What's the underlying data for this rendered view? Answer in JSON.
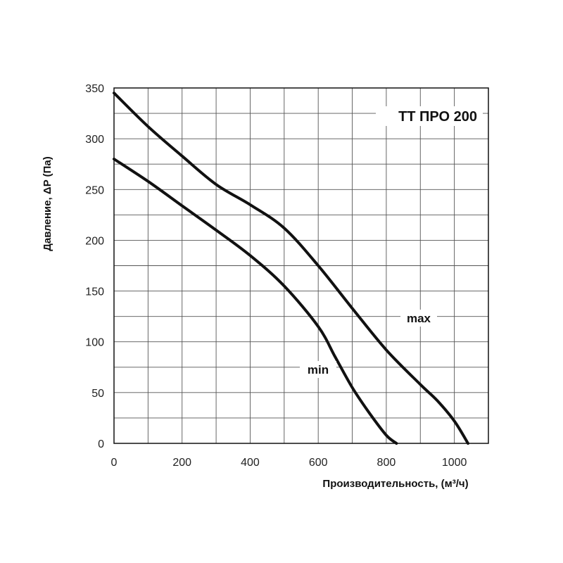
{
  "chart_data": {
    "type": "line",
    "title": "TT ПРО 200",
    "xlabel": "Производительность, (м³/ч)",
    "ylabel": "Давление, ΔP (Па)",
    "xlim": [
      0,
      1100
    ],
    "ylim": [
      0,
      350
    ],
    "xticks": [
      0,
      200,
      400,
      600,
      800,
      1000
    ],
    "yticks": [
      0,
      50,
      100,
      150,
      200,
      250,
      300,
      350
    ],
    "grid": true,
    "series": [
      {
        "name": "max",
        "x": [
          0,
          100,
          200,
          300,
          400,
          500,
          600,
          700,
          800,
          900,
          950,
          1000,
          1040
        ],
        "y": [
          345,
          312,
          283,
          255,
          235,
          212,
          175,
          133,
          92,
          58,
          42,
          22,
          0
        ]
      },
      {
        "name": "min",
        "x": [
          0,
          100,
          200,
          300,
          400,
          500,
          600,
          650,
          700,
          750,
          800,
          830
        ],
        "y": [
          280,
          258,
          234,
          210,
          185,
          155,
          115,
          85,
          55,
          30,
          8,
          0
        ]
      }
    ]
  }
}
